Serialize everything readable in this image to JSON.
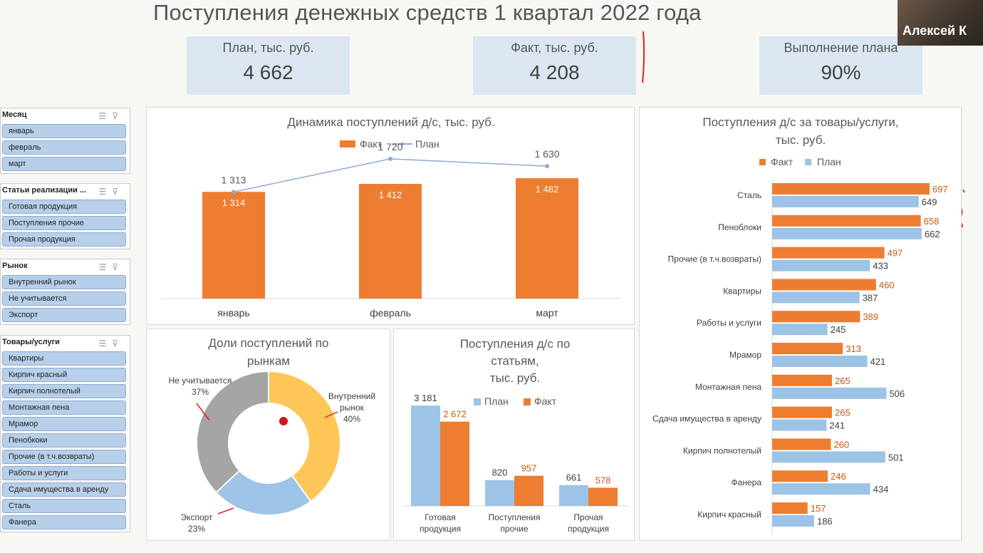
{
  "header": {
    "title": "Поступления денежных средств 1 квартал 2022 года",
    "participant": "Алексей К"
  },
  "kpis": [
    {
      "label": "План, тыс. руб.",
      "value": "4 662"
    },
    {
      "label": "Факт, тыс. руб.",
      "value": "4 208"
    },
    {
      "label": "Выполнение плана",
      "value": "90%"
    }
  ],
  "slicers": [
    {
      "title": "Месяц",
      "items": [
        "январь",
        "февраль",
        "март"
      ]
    },
    {
      "title": "Статьи реализации ...",
      "items": [
        "Готовая продукция",
        "Поступления прочие",
        "Прочая продукция"
      ]
    },
    {
      "title": "Рынок",
      "items": [
        "Внутренний рынок",
        "Не учитывается",
        "Экспорт"
      ]
    },
    {
      "title": "Товары/услуги",
      "items": [
        "Квартиры",
        "Кирпич красный",
        "Кирпич полнотелый",
        "Монтажная пена",
        "Мрамор",
        "Пенобкоки",
        "Прочие (в т.ч.возвраты)",
        "Работы и услуги",
        "Сдача имущества в аренду",
        "Сталь",
        "Фанера"
      ]
    }
  ],
  "colors": {
    "fact": "#ed7d31",
    "plan": "#9dc3e6",
    "plan_line": "#8faadc",
    "grey": "#a5a5a5",
    "yellow": "#ffc658",
    "blue": "#9dc3e6",
    "kpi_bg": "#dce6f1"
  },
  "chart_data": [
    {
      "id": "dynamics",
      "type": "bar",
      "title": "Динамика поступлений д/с, тыс. руб.",
      "categories": [
        "январь",
        "февраль",
        "март"
      ],
      "series": [
        {
          "name": "Факт",
          "kind": "bar",
          "values": [
            1314,
            1412,
            1482
          ],
          "labels": [
            "1 314",
            "1 412",
            "1 482"
          ]
        },
        {
          "name": "План",
          "kind": "line",
          "values": [
            1313,
            1720,
            1630
          ],
          "labels": [
            "1 313",
            "1 720",
            "1 630"
          ]
        }
      ],
      "ylim": [
        0,
        2000
      ],
      "legend": "top"
    },
    {
      "id": "market_shares",
      "type": "pie",
      "subtype": "doughnut",
      "title": "Доли поступлений по рынкам",
      "slices": [
        {
          "name": "Внутренний рынок",
          "value": 40,
          "label": "40%",
          "color": "#ffc658"
        },
        {
          "name": "Экспорт",
          "value": 23,
          "label": "23%",
          "color": "#9dc3e6"
        },
        {
          "name": "Не учитывается",
          "value": 37,
          "label": "37%",
          "color": "#a5a5a5"
        }
      ]
    },
    {
      "id": "by_articles",
      "type": "bar",
      "title": "Поступления д/с по статьям, тыс. руб.",
      "categories": [
        "Готовая продукция",
        "Поступления прочие",
        "Прочая продукция"
      ],
      "series": [
        {
          "name": "План",
          "values": [
            3181,
            820,
            661
          ],
          "labels": [
            "3 181",
            "820",
            "661"
          ]
        },
        {
          "name": "Факт",
          "values": [
            2672,
            957,
            578
          ],
          "labels": [
            "2 672",
            "957",
            "578"
          ]
        }
      ],
      "ylim": [
        0,
        3500
      ],
      "legend": "top"
    },
    {
      "id": "by_goods",
      "type": "bar",
      "orientation": "horizontal",
      "title": "Поступления д/с за товары/услуги, тыс. руб.",
      "categories": [
        "Сталь",
        "Пеноблоки",
        "Прочие (в т.ч.возвраты)",
        "Квартиры",
        "Работы и услуги",
        "Мрамор",
        "Монтажная пена",
        "Сдача имущества в аренду",
        "Кирпич полнотелый",
        "Фанера",
        "Кирпич красный"
      ],
      "series": [
        {
          "name": "Факт",
          "values": [
            697,
            658,
            497,
            460,
            389,
            313,
            265,
            265,
            260,
            246,
            157
          ]
        },
        {
          "name": "План",
          "values": [
            649,
            662,
            433,
            387,
            245,
            421,
            506,
            241,
            501,
            434,
            186
          ]
        }
      ],
      "xlim": [
        0,
        800
      ],
      "legend": "top"
    }
  ]
}
